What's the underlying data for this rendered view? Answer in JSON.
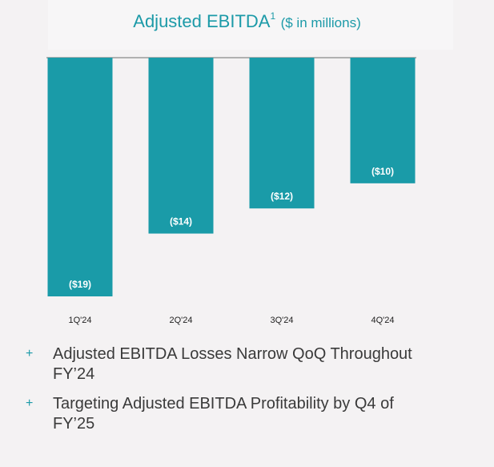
{
  "chart_data": {
    "type": "bar",
    "title": "Adjusted EBITDA",
    "title_superscript": "1",
    "subtitle": "($ in millions)",
    "categories": [
      "1Q'24",
      "2Q'24",
      "3Q'24",
      "4Q'24"
    ],
    "values": [
      -19,
      -14,
      -12,
      -10
    ],
    "data_labels": [
      "($19)",
      "($14)",
      "($12)",
      "($10)"
    ],
    "ylim": [
      -19,
      0
    ],
    "bar_color": "#1a9ba8",
    "label_color": "#ffffff",
    "grid": false,
    "legend": "none"
  },
  "bullets": [
    {
      "marker": "+",
      "text": "Adjusted EBITDA Losses Narrow QoQ Throughout FY’24"
    },
    {
      "marker": "+",
      "text": "Targeting Adjusted EBITDA Profitability by Q4 of FY’25"
    }
  ]
}
